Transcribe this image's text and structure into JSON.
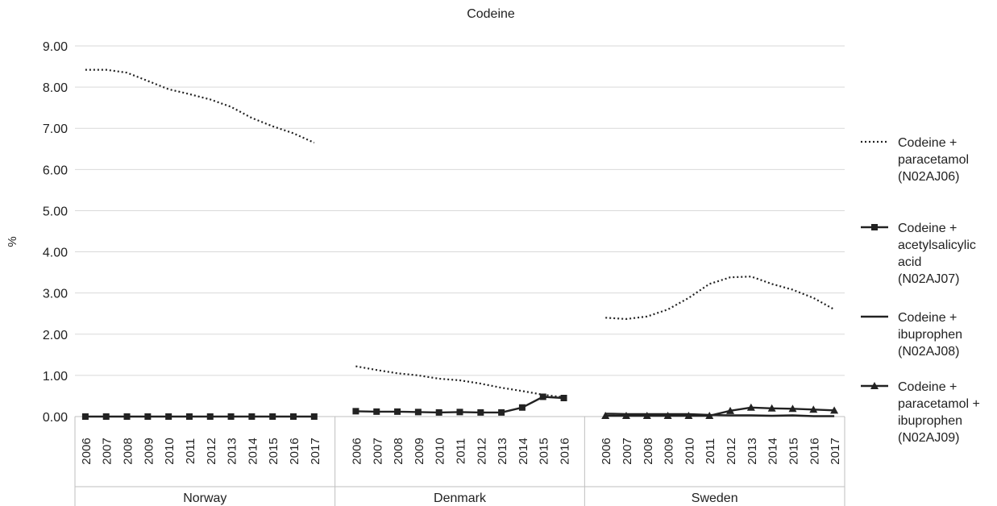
{
  "chart_data": {
    "type": "line",
    "title": "Codeine",
    "ylabel": "%",
    "xlabel": "",
    "ylim": [
      0,
      9
    ],
    "yticks": [
      "0.00",
      "1.00",
      "2.00",
      "3.00",
      "4.00",
      "5.00",
      "6.00",
      "7.00",
      "8.00",
      "9.00"
    ],
    "grid": true,
    "legend_position": "right",
    "groups": [
      {
        "name": "Norway",
        "years": [
          "2006",
          "2007",
          "2008",
          "2009",
          "2010",
          "2011",
          "2012",
          "2013",
          "2014",
          "2015",
          "2016",
          "2017"
        ],
        "series": [
          {
            "name": "Codeine + paracetamol (N02AJ06)",
            "values": [
              8.42,
              8.42,
              8.35,
              8.15,
              7.95,
              7.83,
              7.7,
              7.52,
              7.25,
              7.05,
              6.88,
              6.65
            ]
          },
          {
            "name": "Codeine + acetylsalicylic acid (N02AJ07)",
            "values": [
              0.0,
              0.0,
              0.0,
              0.0,
              0.0,
              0.0,
              0.0,
              0.0,
              0.0,
              0.0,
              0.0,
              0.0
            ]
          },
          {
            "name": "Codeine + ibuprophen (N02AJ08)",
            "values": [
              null,
              null,
              null,
              null,
              null,
              null,
              null,
              null,
              null,
              null,
              null,
              null
            ]
          },
          {
            "name": "Codeine + paracetamol + ibuprophen (N02AJ09)",
            "values": [
              null,
              null,
              null,
              null,
              null,
              null,
              null,
              null,
              null,
              null,
              null,
              null
            ]
          }
        ]
      },
      {
        "name": "Denmark",
        "years": [
          "2006",
          "2007",
          "2008",
          "2009",
          "2010",
          "2011",
          "2012",
          "2013",
          "2014",
          "2015",
          "2016"
        ],
        "series": [
          {
            "name": "Codeine + paracetamol (N02AJ06)",
            "values": [
              1.22,
              1.13,
              1.05,
              1.0,
              0.92,
              0.88,
              0.8,
              0.7,
              0.62,
              0.53,
              0.47
            ]
          },
          {
            "name": "Codeine + acetylsalicylic acid (N02AJ07)",
            "values": [
              0.13,
              0.12,
              0.12,
              0.11,
              0.1,
              0.11,
              0.1,
              0.1,
              0.22,
              0.48,
              0.45
            ]
          },
          {
            "name": "Codeine + ibuprophen (N02AJ08)",
            "values": [
              null,
              null,
              null,
              null,
              null,
              null,
              null,
              null,
              null,
              null,
              null
            ]
          },
          {
            "name": "Codeine + paracetamol + ibuprophen (N02AJ09)",
            "values": [
              null,
              null,
              null,
              null,
              null,
              null,
              null,
              null,
              null,
              null,
              null
            ]
          }
        ]
      },
      {
        "name": "Sweden",
        "years": [
          "2006",
          "2007",
          "2008",
          "2009",
          "2010",
          "2011",
          "2012",
          "2013",
          "2014",
          "2015",
          "2016",
          "2017"
        ],
        "series": [
          {
            "name": "Codeine + paracetamol (N02AJ06)",
            "values": [
              2.4,
              2.37,
              2.43,
              2.6,
              2.88,
              3.22,
              3.38,
              3.4,
              3.22,
              3.08,
              2.88,
              2.6
            ]
          },
          {
            "name": "Codeine + acetylsalicylic acid (N02AJ07)",
            "values": [
              null,
              null,
              null,
              null,
              null,
              null,
              null,
              null,
              null,
              null,
              null,
              null
            ]
          },
          {
            "name": "Codeine + ibuprophen (N02AJ08)",
            "values": [
              0.07,
              0.06,
              0.06,
              0.06,
              0.06,
              0.04,
              0.03,
              0.03,
              0.02,
              0.03,
              0.01,
              0.01
            ]
          },
          {
            "name": "Codeine + paracetamol + ibuprophen (N02AJ09)",
            "values": [
              0.02,
              0.02,
              0.02,
              0.02,
              0.02,
              0.02,
              0.14,
              0.22,
              0.2,
              0.19,
              0.17,
              0.15
            ]
          }
        ]
      }
    ],
    "legend": [
      {
        "key": "n02aj06",
        "lines": [
          "Codeine +",
          "paracetamol",
          "(N02AJ06)"
        ],
        "style": "dotted",
        "marker": "none"
      },
      {
        "key": "n02aj07",
        "lines": [
          "Codeine +",
          "acetylsalicylic",
          "acid",
          "(N02AJ07)"
        ],
        "style": "solid",
        "marker": "square"
      },
      {
        "key": "n02aj08",
        "lines": [
          "Codeine +",
          "ibuprophen",
          "(N02AJ08)"
        ],
        "style": "solid",
        "marker": "none"
      },
      {
        "key": "n02aj09",
        "lines": [
          "Codeine +",
          "paracetamol +",
          "ibuprophen",
          "(N02AJ09)"
        ],
        "style": "solid",
        "marker": "triangle"
      }
    ]
  }
}
